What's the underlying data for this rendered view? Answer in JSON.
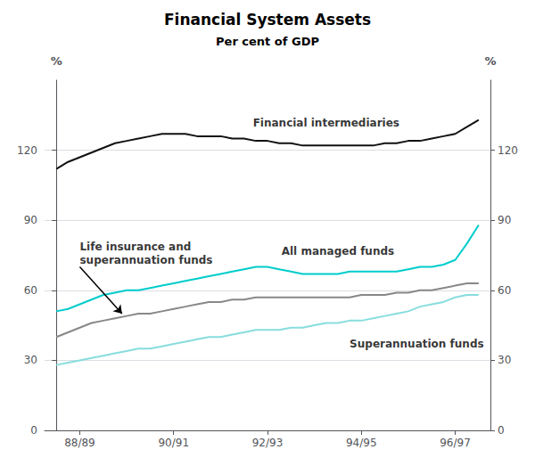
{
  "chart_data": {
    "type": "line",
    "title": "Financial System Assets",
    "subtitle": "Per cent of GDP",
    "x": [
      0,
      0.5,
      1,
      1.5,
      2,
      2.5,
      3,
      3.5,
      4,
      4.5,
      5,
      5.5,
      6,
      6.5,
      7,
      7.5,
      8,
      8.5,
      9,
      9.5,
      10,
      10.5,
      11,
      11.5,
      12,
      12.5,
      13,
      13.5,
      14,
      14.5,
      15,
      15.5,
      16,
      16.5,
      17,
      17.5,
      18
    ],
    "xlim": [
      -0.5,
      18.5
    ],
    "xticks": [
      {
        "value": 1,
        "label": "88/89"
      },
      {
        "value": 5,
        "label": "90/91"
      },
      {
        "value": 9,
        "label": "92/93"
      },
      {
        "value": 13,
        "label": "94/95"
      },
      {
        "value": 17,
        "label": "96/97"
      }
    ],
    "ylabel": "%",
    "ylim": [
      0,
      150
    ],
    "yticks": [
      0,
      30,
      60,
      90,
      120
    ],
    "y2label": "%",
    "y2lim": [
      0,
      150
    ],
    "y2ticks": [
      0,
      30,
      60,
      90,
      120
    ],
    "grid": true,
    "series": [
      {
        "color": "#111111",
        "values": [
          112,
          115,
          117,
          119,
          121,
          123,
          124,
          125,
          126,
          127,
          127,
          127,
          126,
          126,
          126,
          125,
          125,
          124,
          124,
          123,
          123,
          122,
          122,
          122,
          122,
          122,
          122,
          122,
          123,
          123,
          124,
          124,
          125,
          126,
          127,
          130,
          133
        ]
      },
      {
        "color": "#00cccc",
        "values": [
          51,
          52,
          54,
          56,
          58,
          59,
          60,
          60,
          61,
          62,
          63,
          64,
          65,
          66,
          67,
          68,
          69,
          70,
          70,
          69,
          68,
          67,
          67,
          67,
          67,
          68,
          68,
          68,
          68,
          68,
          69,
          70,
          70,
          71,
          73,
          80,
          88
        ]
      },
      {
        "color": "#888888",
        "values": [
          40,
          42,
          44,
          46,
          47,
          48,
          49,
          50,
          50,
          51,
          52,
          53,
          54,
          55,
          55,
          56,
          56,
          57,
          57,
          57,
          57,
          57,
          57,
          57,
          57,
          57,
          58,
          58,
          58,
          59,
          59,
          60,
          60,
          61,
          62,
          63,
          63
        ]
      },
      {
        "color": "#88dddd",
        "values": [
          28,
          29,
          30,
          31,
          32,
          33,
          34,
          35,
          35,
          36,
          37,
          38,
          39,
          40,
          40,
          41,
          42,
          43,
          43,
          43,
          44,
          44,
          45,
          46,
          46,
          47,
          47,
          48,
          49,
          50,
          51,
          53,
          54,
          55,
          57,
          58,
          58
        ]
      }
    ],
    "annotations": [
      {
        "text": "Financial intermediaries",
        "x": 11.5,
        "y": 129
      },
      {
        "text": "All managed funds",
        "x": 12.0,
        "y": 74
      },
      {
        "text": "Superannuation funds",
        "x": 12.5,
        "y": 40
      },
      {
        "text": "Life insurance and\nsuperannuation funds",
        "x": 1.0,
        "y": 70,
        "arrow_x": 2.8,
        "arrow_y": 50
      }
    ]
  }
}
